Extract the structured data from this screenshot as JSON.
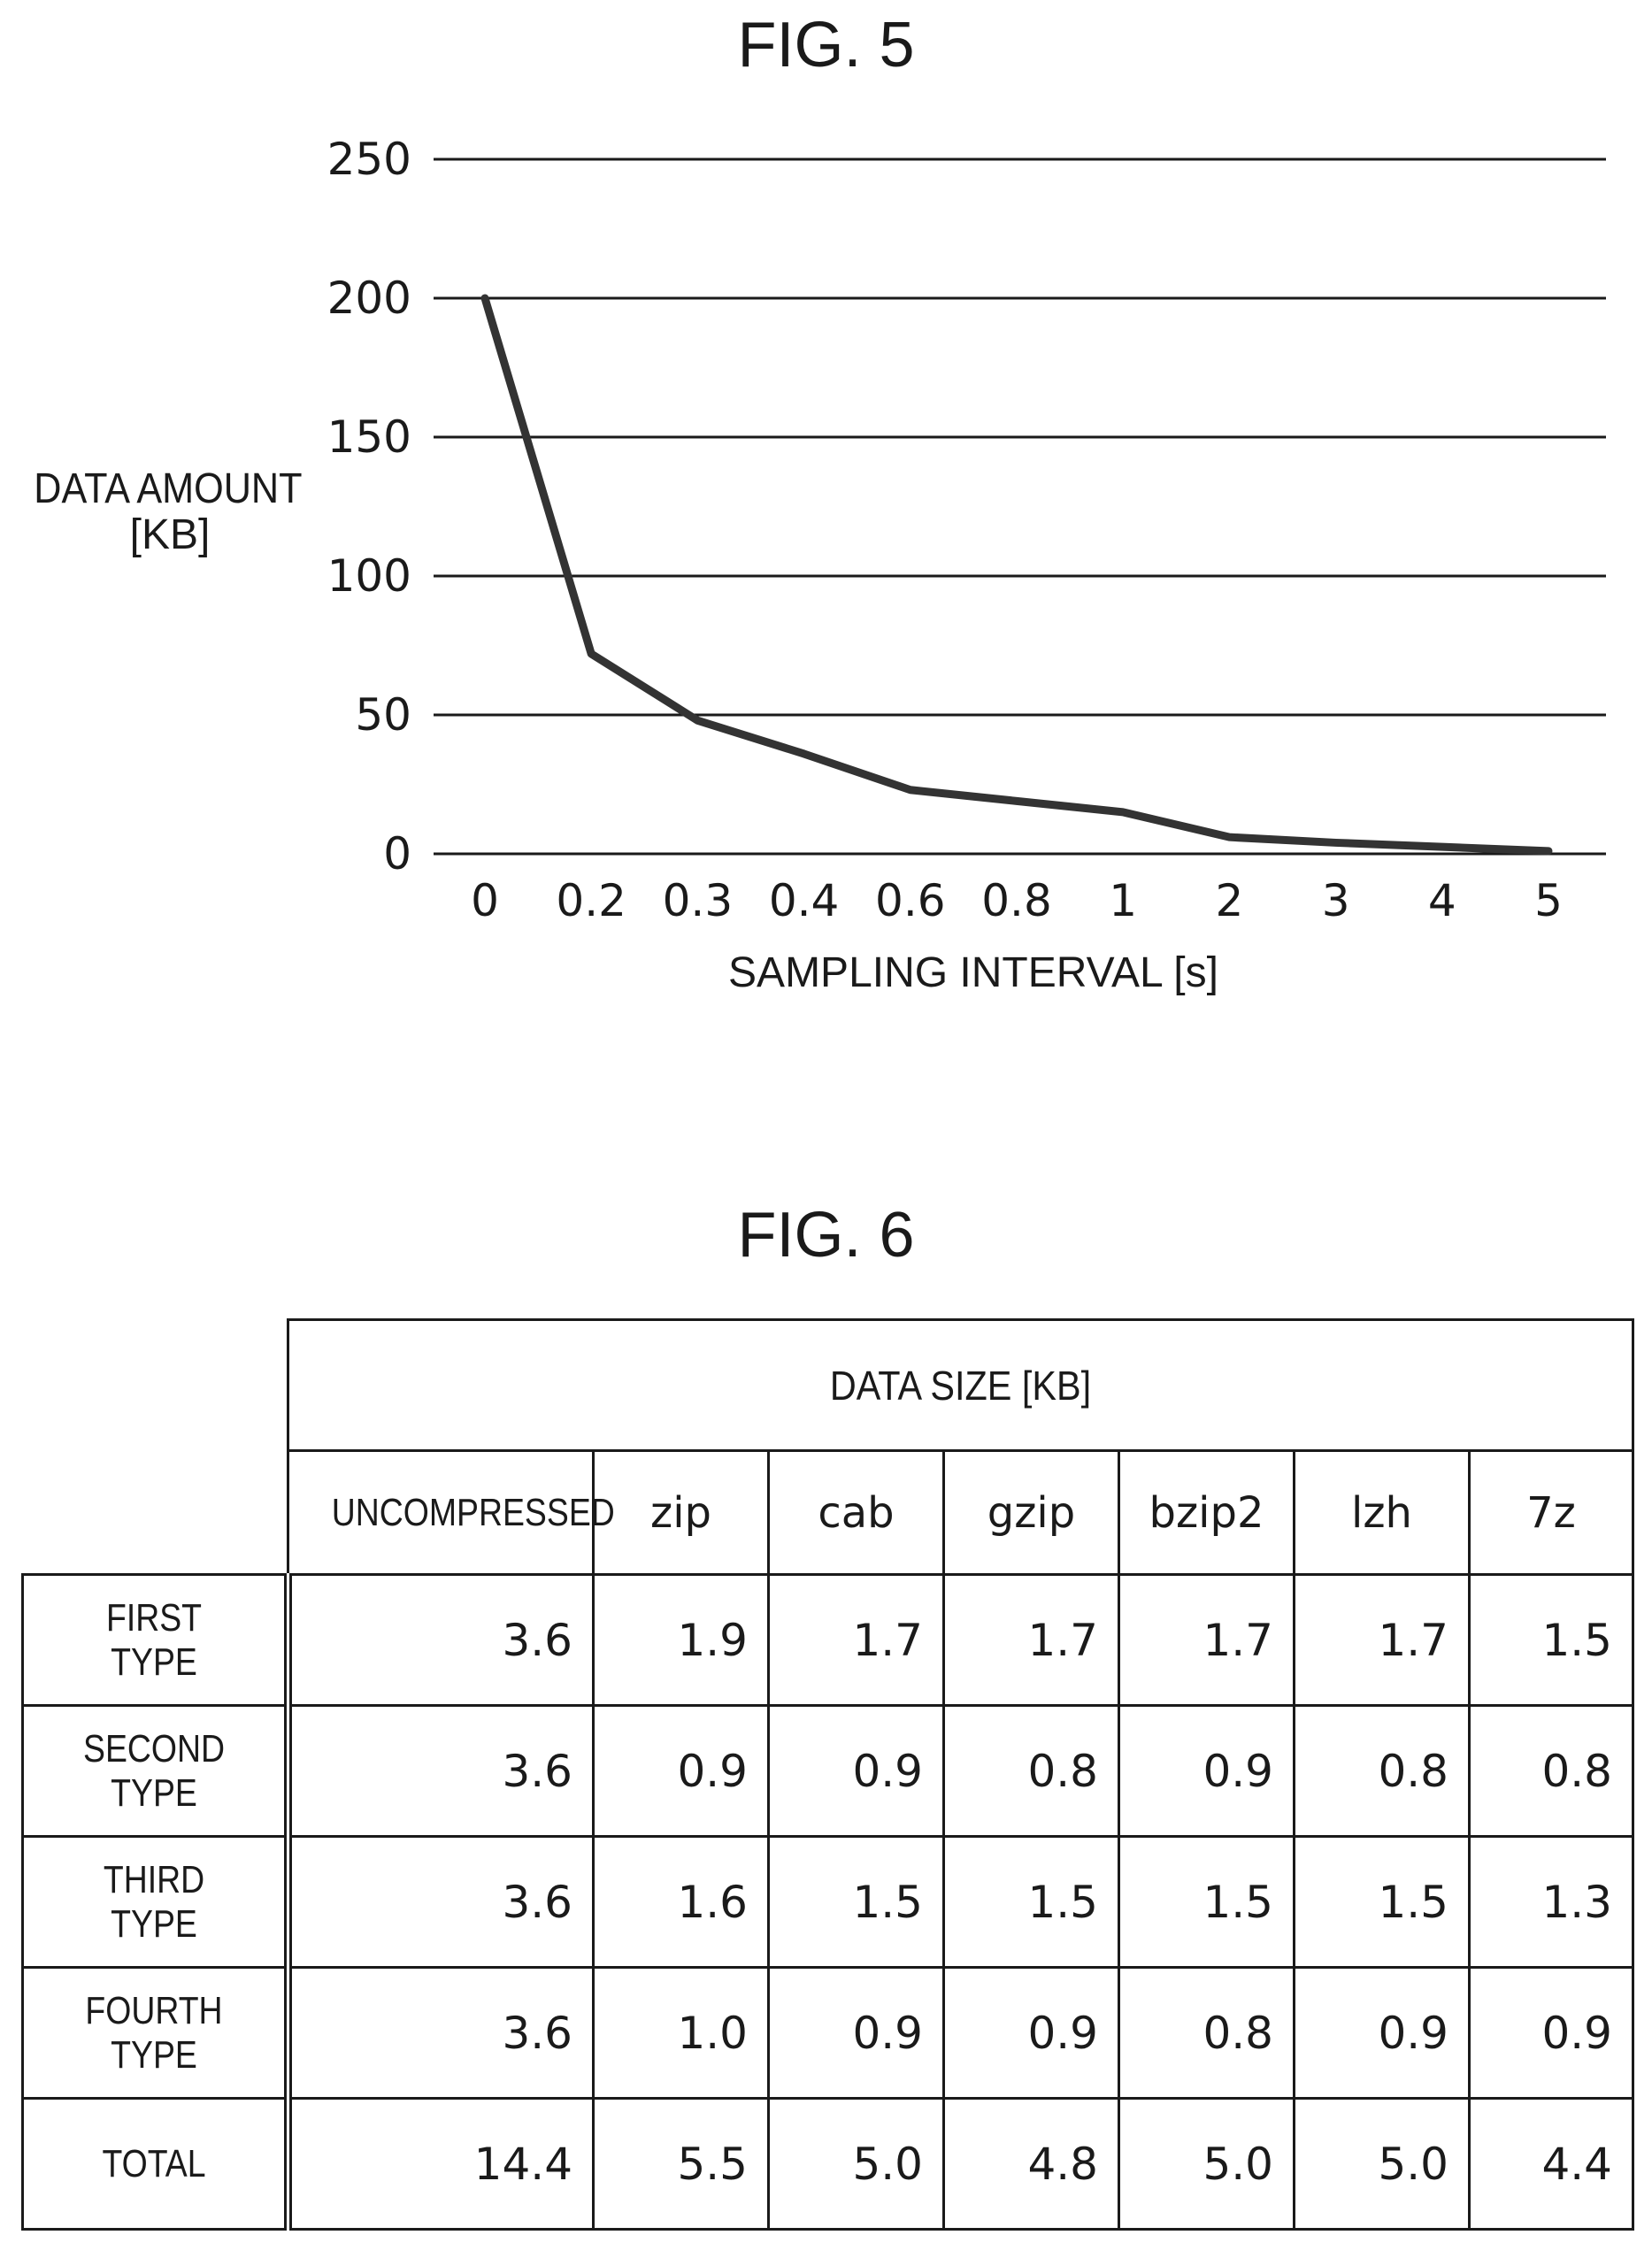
{
  "fig5": {
    "title": "FIG. 5",
    "chart_data": {
      "type": "line",
      "ylabel_line1": "DATA AMOUNT",
      "ylabel_line2": "[KB]",
      "xlabel": "SAMPLING INTERVAL [s]",
      "categories": [
        "0",
        "0.2",
        "0.3",
        "0.4",
        "0.6",
        "0.8",
        "1",
        "2",
        "3",
        "4",
        "5"
      ],
      "values": [
        200,
        72,
        48,
        36,
        23,
        19,
        15,
        6,
        4,
        2.5,
        1
      ],
      "yticks": [
        "0",
        "50",
        "100",
        "150",
        "200",
        "250"
      ],
      "ylim": [
        0,
        250
      ],
      "grid": true,
      "line_color": "#333333"
    }
  },
  "fig6": {
    "title": "FIG. 6",
    "header": "DATA SIZE [KB]",
    "columns": [
      "UNCOMPRESSED",
      "zip",
      "cab",
      "gzip",
      "bzip2",
      "lzh",
      "7z"
    ],
    "rows": [
      {
        "label": "FIRST TYPE",
        "values": [
          "3.6",
          "1.9",
          "1.7",
          "1.7",
          "1.7",
          "1.7",
          "1.5"
        ]
      },
      {
        "label": "SECOND TYPE",
        "values": [
          "3.6",
          "0.9",
          "0.9",
          "0.8",
          "0.9",
          "0.8",
          "0.8"
        ]
      },
      {
        "label": "THIRD TYPE",
        "values": [
          "3.6",
          "1.6",
          "1.5",
          "1.5",
          "1.5",
          "1.5",
          "1.3"
        ]
      },
      {
        "label": "FOURTH TYPE",
        "values": [
          "3.6",
          "1.0",
          "0.9",
          "0.9",
          "0.8",
          "0.9",
          "0.9"
        ]
      }
    ],
    "total": {
      "label": "TOTAL",
      "values": [
        "14.4",
        "5.5",
        "5.0",
        "4.8",
        "5.0",
        "5.0",
        "4.4"
      ]
    }
  }
}
